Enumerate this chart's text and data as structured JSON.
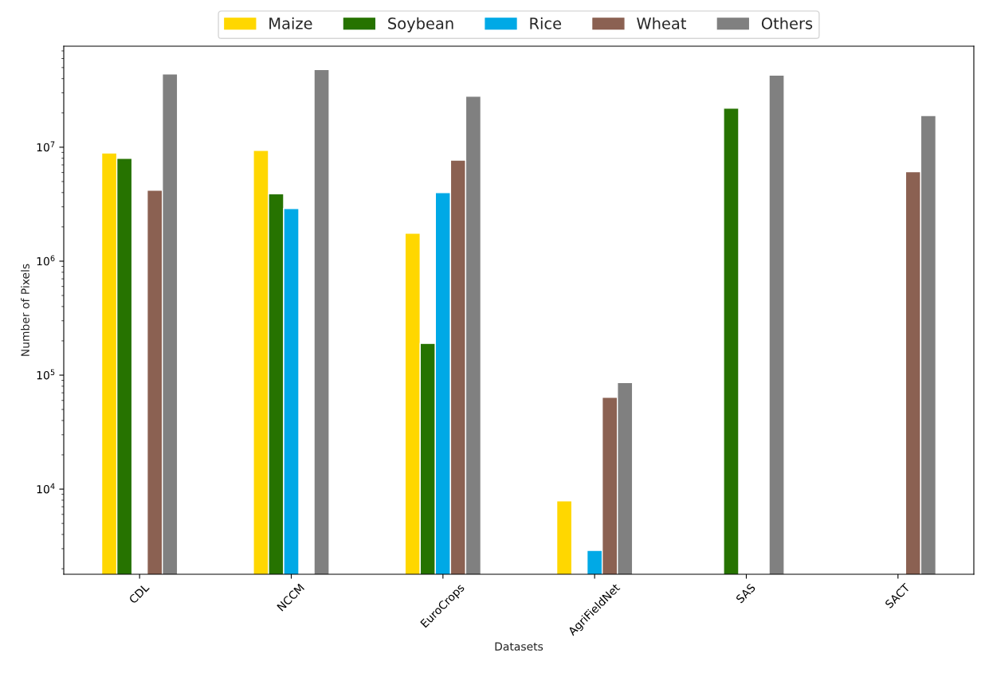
{
  "chart_data": {
    "type": "bar",
    "xlabel": "Datasets",
    "ylabel": "Number of Pixels",
    "categories": [
      "CDL",
      "NCCM",
      "EuroCrops",
      "AgriFieldNet",
      "SAS",
      "SACT"
    ],
    "series": [
      {
        "name": "Maize",
        "color": "#ffd700",
        "values": [
          8900000,
          9400000,
          1760000,
          7900,
          null,
          null
        ]
      },
      {
        "name": "Soybean",
        "color": "#267300",
        "values": [
          8000000,
          3900000,
          190000,
          null,
          22000000,
          null
        ]
      },
      {
        "name": "Rice",
        "color": "#00a9e6",
        "values": [
          null,
          2900000,
          4000000,
          2900,
          null,
          null
        ]
      },
      {
        "name": "Wheat",
        "color": "#8b6152",
        "values": [
          4200000,
          null,
          7700000,
          64000,
          null,
          6100000
        ]
      },
      {
        "name": "Others",
        "color": "#808080",
        "values": [
          44000000,
          48000000,
          28000000,
          86000,
          43000000,
          19000000
        ]
      }
    ],
    "log": "y",
    "ylim": [
      1790,
      77000000
    ],
    "yticks": [
      {
        "value": 10000,
        "label": "10$^{4}$"
      },
      {
        "value": 100000,
        "label": "10$^{5}$"
      },
      {
        "value": 1000000,
        "label": "10$^{6}$"
      },
      {
        "value": 10000000,
        "label": "10$^{7}$"
      }
    ],
    "legend": "top",
    "grid": false
  }
}
